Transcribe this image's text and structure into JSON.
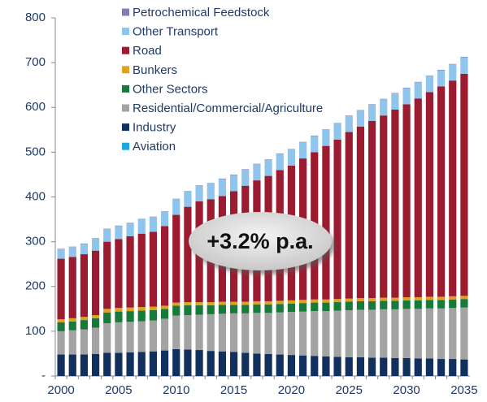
{
  "chart_data": {
    "type": "stacked_bar",
    "categories": [
      "2000",
      null,
      null,
      null,
      null,
      "2005",
      null,
      null,
      null,
      null,
      "2010",
      null,
      null,
      null,
      null,
      "2015",
      null,
      null,
      null,
      null,
      "2020",
      null,
      null,
      null,
      null,
      "2025",
      null,
      null,
      null,
      null,
      "2030",
      null,
      null,
      null,
      null,
      "2035"
    ],
    "series": [
      {
        "name": "Aviation",
        "color": "#1ea7e0",
        "values": [
          0,
          0,
          0,
          0,
          0,
          0,
          0,
          0,
          0,
          0,
          0,
          0,
          0,
          0,
          0,
          0,
          0,
          0,
          0,
          0,
          0,
          0,
          0,
          0,
          0,
          0,
          0,
          0,
          0,
          0,
          0,
          0,
          0,
          0,
          0,
          0
        ]
      },
      {
        "name": "Industry",
        "color": "#12305e",
        "values": [
          48,
          48,
          48,
          49,
          52,
          52,
          53,
          54,
          55,
          57,
          60,
          59,
          58,
          56,
          55,
          54,
          52,
          50,
          49,
          48,
          47,
          46,
          45,
          44,
          43,
          42,
          42,
          41,
          41,
          40,
          40,
          39,
          39,
          38,
          38,
          37
        ]
      },
      {
        "name": "Residential/Commercial/Agriculture",
        "color": "#a3a3a3",
        "values": [
          52,
          54,
          56,
          59,
          66,
          68,
          68,
          68,
          69,
          71,
          75,
          77,
          79,
          82,
          84,
          86,
          88,
          91,
          92,
          94,
          96,
          98,
          100,
          101,
          103,
          105,
          106,
          107,
          108,
          109,
          110,
          111,
          112,
          113,
          114,
          116
        ]
      },
      {
        "name": "Other Sectors",
        "color": "#17793a",
        "values": [
          20,
          20,
          21,
          21,
          24,
          24,
          24,
          24,
          23,
          22,
          22,
          22,
          21,
          20,
          20,
          19,
          19,
          19,
          19,
          19,
          19,
          19,
          19,
          19,
          19,
          19,
          19,
          19,
          19,
          19,
          19,
          19,
          19,
          19,
          19,
          19
        ]
      },
      {
        "name": "Bunkers",
        "color": "#e0a020",
        "values": [
          7,
          7,
          7,
          7,
          8,
          8,
          8,
          8,
          8,
          7,
          7,
          7,
          7,
          7,
          7,
          7,
          7,
          7,
          7,
          7,
          7,
          7,
          7,
          7,
          7,
          7,
          7,
          7,
          7,
          7,
          7,
          7,
          7,
          7,
          7,
          7
        ]
      },
      {
        "name": "Road",
        "color": "#9b1b30",
        "values": [
          135,
          137,
          140,
          144,
          150,
          154,
          159,
          164,
          167,
          178,
          196,
          213,
          225,
          230,
          236,
          247,
          259,
          270,
          280,
          292,
          301,
          316,
          329,
          343,
          356,
          372,
          383,
          396,
          407,
          420,
          431,
          444,
          457,
          470,
          482,
          496
        ]
      },
      {
        "name": "Other Transport",
        "color": "#8fc4ec",
        "values": [
          21,
          22,
          23,
          27,
          28,
          29,
          29,
          32,
          33,
          32,
          35,
          34,
          35,
          35,
          38,
          36,
          36,
          36,
          36,
          36,
          36,
          36,
          36,
          36,
          36,
          36,
          36,
          36,
          36,
          36,
          36,
          36,
          36,
          36,
          36,
          37
        ]
      },
      {
        "name": "Petrochemical Feedstock",
        "color": "#8080b0",
        "values": [
          1,
          1,
          1,
          1,
          1,
          1,
          1,
          1,
          1,
          1,
          1,
          1,
          1,
          1,
          1,
          1,
          1,
          1,
          1,
          1,
          1,
          1,
          1,
          1,
          1,
          1,
          1,
          1,
          1,
          1,
          1,
          1,
          1,
          1,
          1,
          1
        ]
      }
    ],
    "ylim": [
      0,
      800
    ],
    "yticks": [
      {
        "value": 0,
        "label": "-"
      },
      100,
      200,
      300,
      400,
      500,
      600,
      700,
      800
    ],
    "annotation": "+3.2% p.a."
  }
}
